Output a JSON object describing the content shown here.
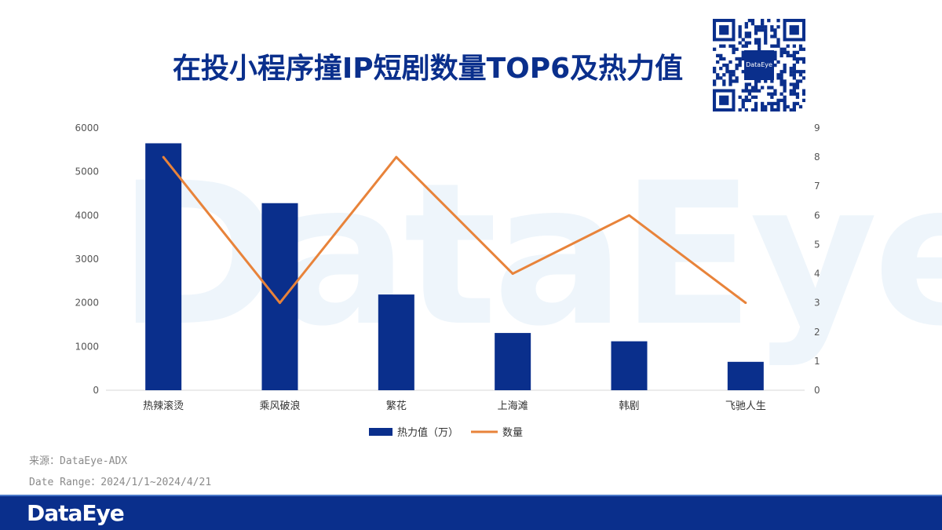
{
  "watermark": "DataEye",
  "title": "在投小程序撞IP短剧数量TOP6及热力值",
  "qr_logo": "DataEye",
  "source_line1": "来源：DataEye-ADX",
  "source_line2": "Date Range：2024/1/1~2024/4/21",
  "footer_logo": "DataEye",
  "colors": {
    "bar": "#0a2f8c",
    "line": "#e8833a",
    "title": "#0a2f8c"
  },
  "chart_data": {
    "type": "bar",
    "categories": [
      "热辣滚烫",
      "乘风破浪",
      "繁花",
      "上海滩",
      "韩剧",
      "飞驰人生"
    ],
    "series": [
      {
        "name": "热力值（万）",
        "type": "bar",
        "axis": "left",
        "values": [
          5650,
          4280,
          2190,
          1310,
          1120,
          650
        ]
      },
      {
        "name": "数量",
        "type": "line",
        "axis": "right",
        "values": [
          8,
          3,
          8,
          4,
          6,
          3
        ]
      }
    ],
    "y_left": {
      "min": 0,
      "max": 6000,
      "ticks": [
        "0",
        "1000",
        "2000",
        "3000",
        "4000",
        "5000",
        "6000"
      ]
    },
    "y_right": {
      "min": 0,
      "max": 9,
      "ticks": [
        "0",
        "1",
        "2",
        "3",
        "4",
        "5",
        "6",
        "7",
        "8",
        "9"
      ]
    },
    "legend": [
      "热力值（万）",
      "数量"
    ],
    "legend_position": "bottom"
  }
}
